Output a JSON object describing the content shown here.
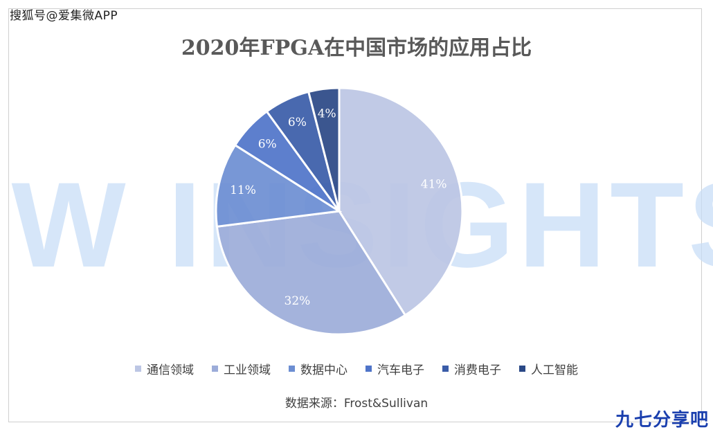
{
  "watermark_text": "搜狐号@爱集微APP",
  "background_watermark": "JW INSIGHTS",
  "corner_logo": "九七分享吧",
  "source_note": "数据来源：Frost&Sullivan",
  "chart_data": {
    "type": "pie",
    "title": "2020年FPGA在中国市场的应用占比",
    "categories": [
      "通信领域",
      "工业领域",
      "数据中心",
      "汽车电子",
      "消费电子",
      "人工智能"
    ],
    "values": [
      41,
      32,
      11,
      6,
      6,
      4
    ],
    "value_labels": [
      "41%",
      "32%",
      "11%",
      "6%",
      "6%",
      "4%"
    ],
    "colors": [
      "#bcc6e4",
      "#9cacd9",
      "#6c8ed2",
      "#4f74c9",
      "#3a5ca8",
      "#2a4886"
    ],
    "legend_position": "bottom"
  }
}
